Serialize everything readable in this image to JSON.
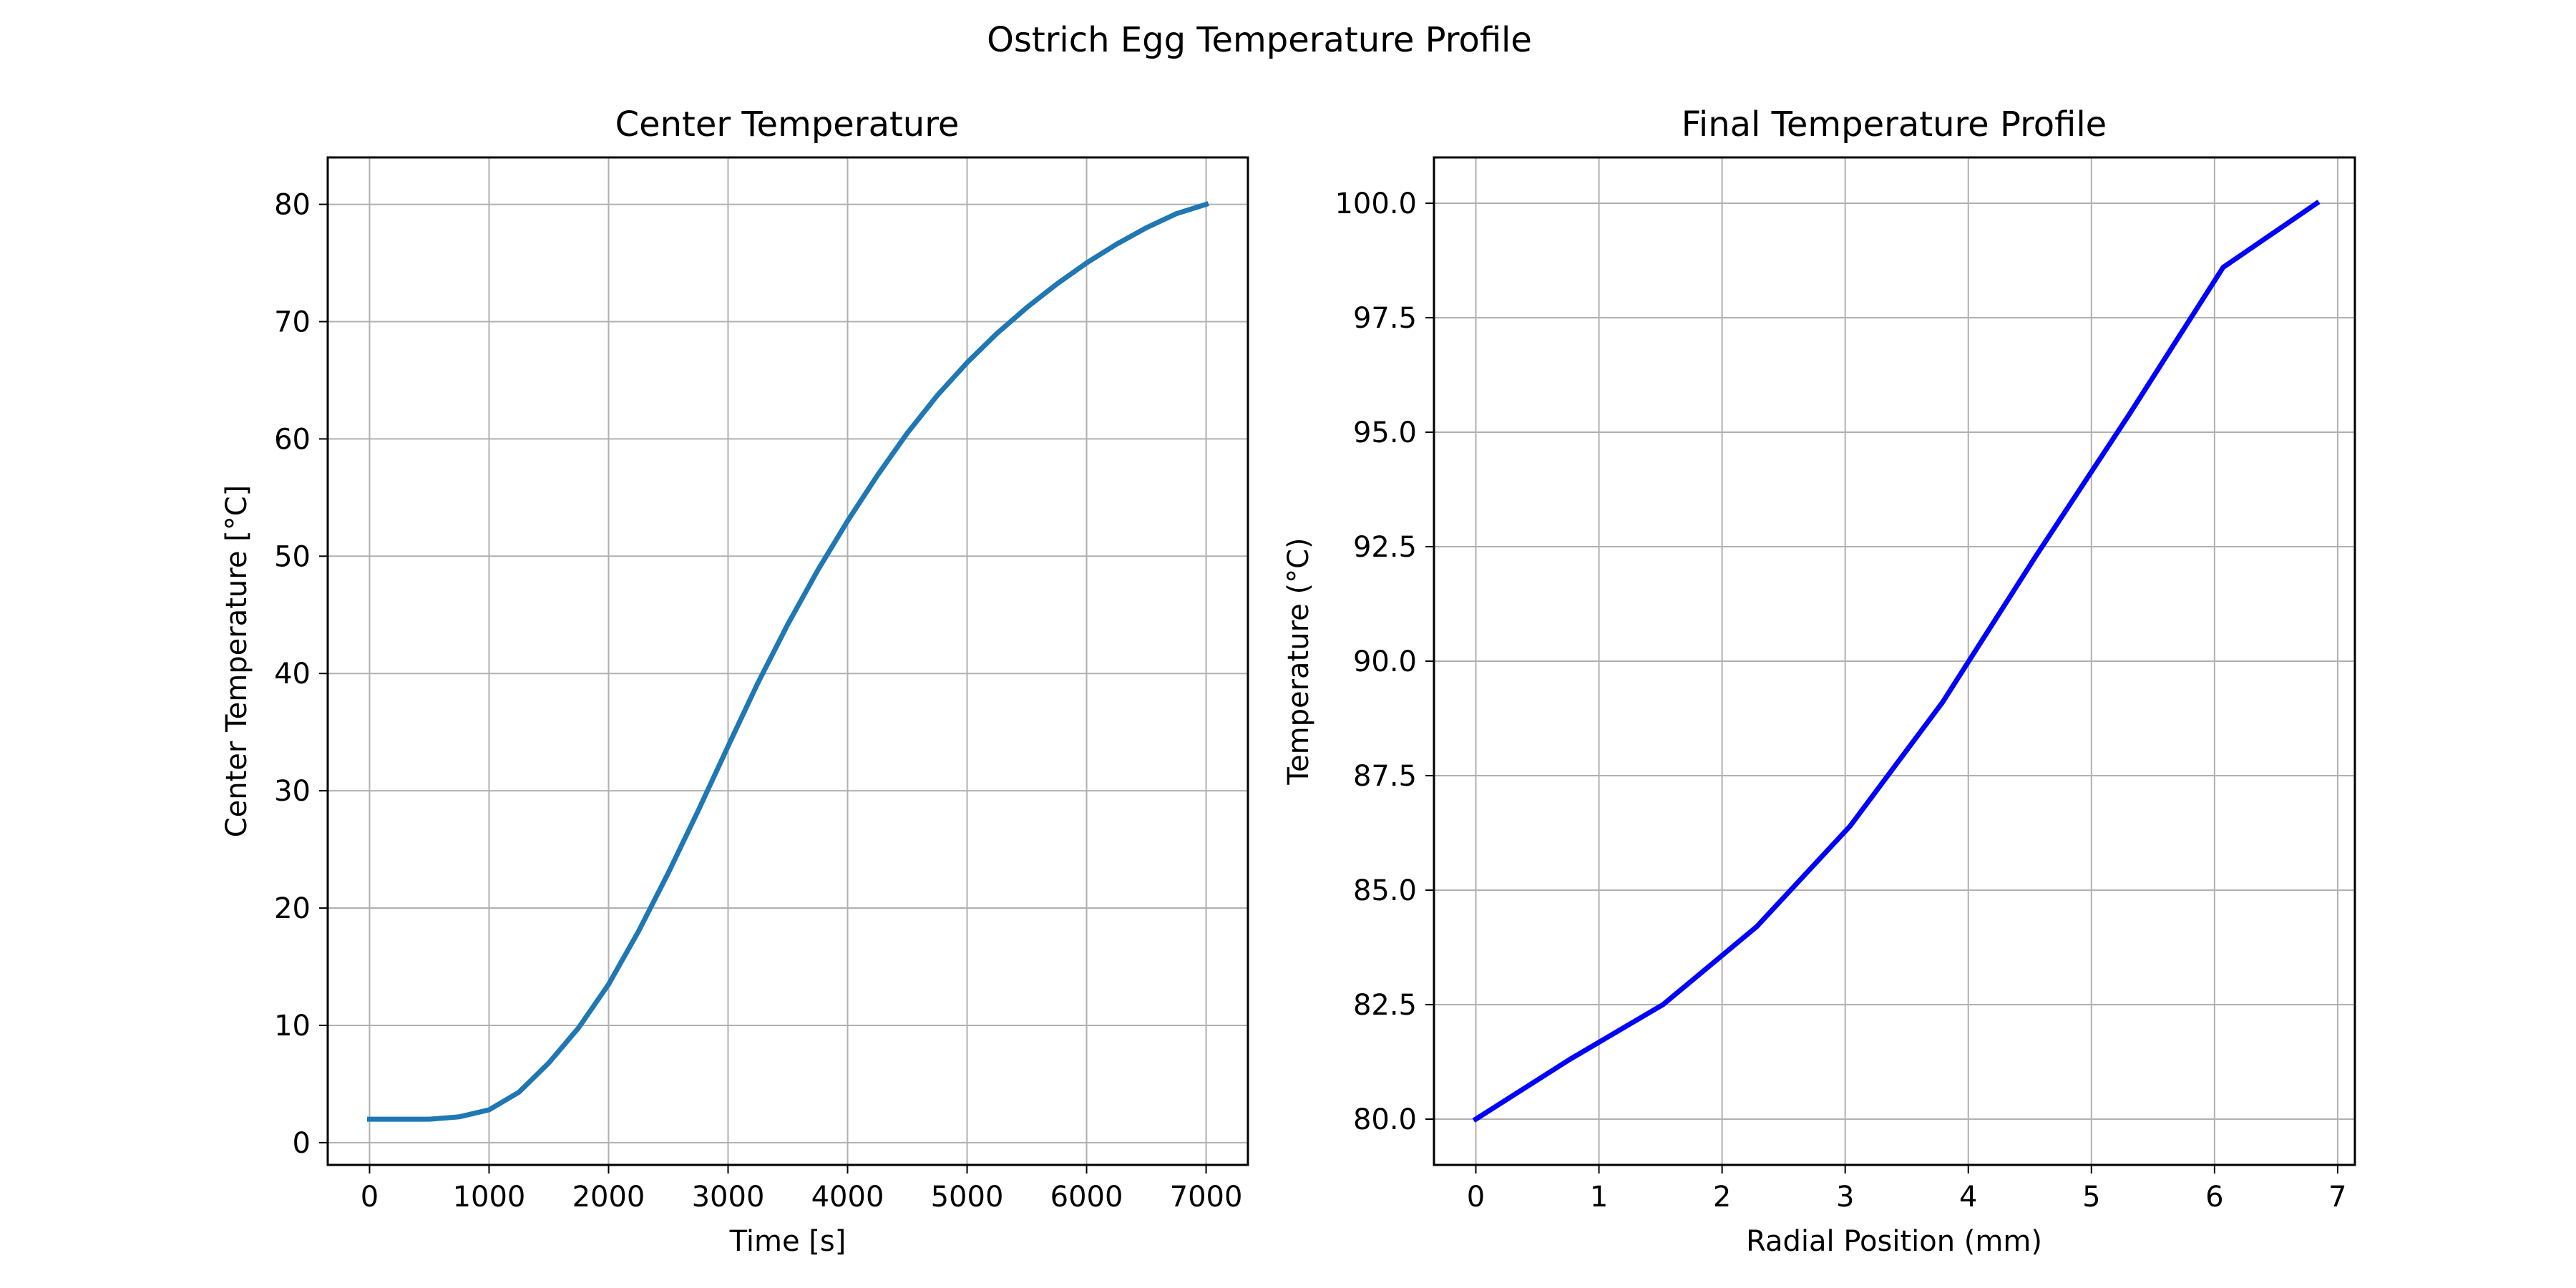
{
  "figure": {
    "suptitle": "Ostrich Egg Temperature Profile"
  },
  "chart_data": [
    {
      "type": "line",
      "title": "Center Temperature",
      "xlabel": "Time [s]",
      "ylabel": "Center Temperature [°C]",
      "xlim": [
        -350,
        7350
      ],
      "ylim": [
        -1.9,
        84.0
      ],
      "xticks": [
        0,
        1000,
        2000,
        3000,
        4000,
        5000,
        6000,
        7000
      ],
      "xtick_labels": [
        "0",
        "1000",
        "2000",
        "3000",
        "4000",
        "5000",
        "6000",
        "7000"
      ],
      "yticks": [
        0,
        10,
        20,
        30,
        40,
        50,
        60,
        70,
        80
      ],
      "ytick_labels": [
        "0",
        "10",
        "20",
        "30",
        "40",
        "50",
        "60",
        "70",
        "80"
      ],
      "grid": true,
      "series": [
        {
          "color": "#1f77b4",
          "x": [
            0,
            250,
            500,
            750,
            1000,
            1250,
            1500,
            1750,
            2000,
            2250,
            2500,
            2750,
            3000,
            3250,
            3500,
            3750,
            4000,
            4250,
            4500,
            4750,
            5000,
            5250,
            5500,
            5750,
            6000,
            6250,
            6500,
            6750,
            7000
          ],
          "y": [
            2.0,
            2.0,
            2.0,
            2.2,
            2.8,
            4.3,
            6.8,
            9.8,
            13.5,
            18.0,
            23.0,
            28.3,
            33.8,
            39.2,
            44.2,
            48.8,
            53.0,
            56.9,
            60.5,
            63.7,
            66.5,
            69.0,
            71.2,
            73.2,
            75.0,
            76.6,
            78.0,
            79.2,
            80.0
          ]
        }
      ]
    },
    {
      "type": "line",
      "title": "Final Temperature Profile",
      "xlabel": "Radial Position (mm)",
      "ylabel": "Temperature (°C)",
      "xlim": [
        -0.34,
        7.14
      ],
      "ylim": [
        79.0,
        101.0
      ],
      "xticks": [
        0,
        1,
        2,
        3,
        4,
        5,
        6,
        7
      ],
      "xtick_labels": [
        "0",
        "1",
        "2",
        "3",
        "4",
        "5",
        "6",
        "7"
      ],
      "yticks": [
        80.0,
        82.5,
        85.0,
        87.5,
        90.0,
        92.5,
        95.0,
        97.5,
        100.0
      ],
      "ytick_labels": [
        "80.0",
        "82.5",
        "85.0",
        "87.5",
        "90.0",
        "92.5",
        "95.0",
        "97.5",
        "100.0"
      ],
      "grid": true,
      "series": [
        {
          "color": "#0000ff",
          "x": [
            0,
            0.76,
            1.52,
            2.28,
            3.04,
            3.79,
            4.55,
            5.31,
            6.07,
            6.83
          ],
          "y": [
            80.0,
            81.3,
            82.5,
            84.2,
            86.4,
            89.1,
            92.3,
            95.4,
            98.6,
            100.0
          ]
        }
      ]
    }
  ]
}
